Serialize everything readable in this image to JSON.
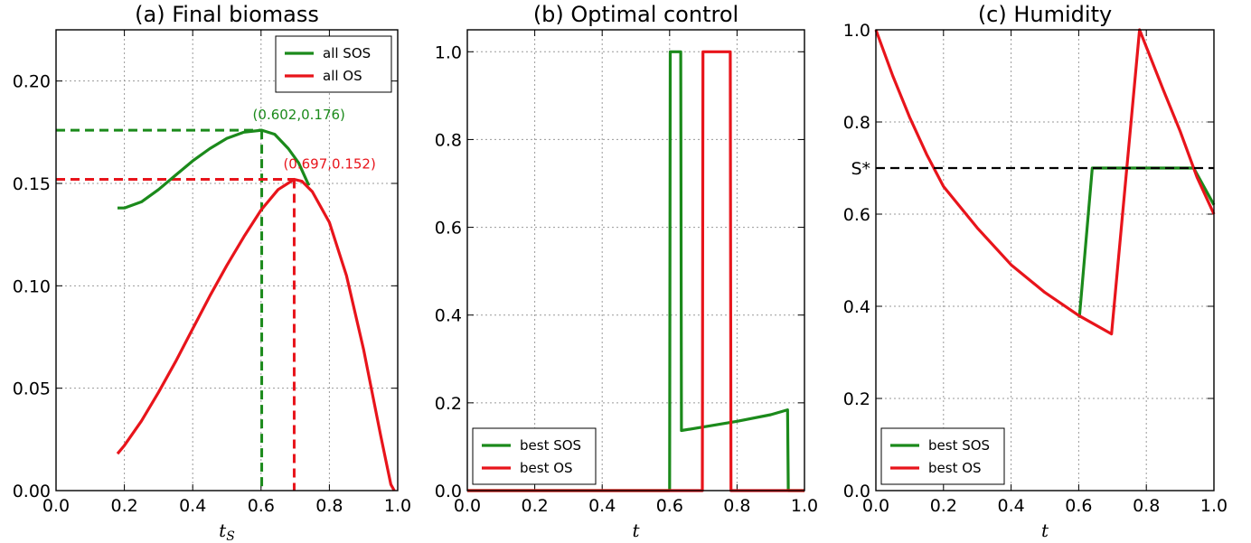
{
  "colors": {
    "green": "#1b8a1b",
    "red": "#e8141b",
    "black": "#000000"
  },
  "chart_data": [
    {
      "type": "line",
      "title": "(a) Final biomass",
      "xlabel": "t_S",
      "ylabel": "",
      "xlim": [
        0.0,
        1.0
      ],
      "ylim": [
        0.0,
        0.225
      ],
      "xticks": [
        "0.0",
        "0.2",
        "0.4",
        "0.6",
        "0.8",
        "1.0"
      ],
      "yticks": [
        "0.00",
        "0.05",
        "0.10",
        "0.15",
        "0.20"
      ],
      "grid": true,
      "legend_position": "top-right",
      "series": [
        {
          "name": "all SOS",
          "color": "green",
          "points": [
            [
              0.18,
              0.138
            ],
            [
              0.2,
              0.138
            ],
            [
              0.25,
              0.141
            ],
            [
              0.3,
              0.147
            ],
            [
              0.35,
              0.154
            ],
            [
              0.4,
              0.161
            ],
            [
              0.45,
              0.167
            ],
            [
              0.5,
              0.172
            ],
            [
              0.55,
              0.175
            ],
            [
              0.602,
              0.176
            ],
            [
              0.64,
              0.174
            ],
            [
              0.68,
              0.167
            ],
            [
              0.71,
              0.16
            ],
            [
              0.74,
              0.149
            ]
          ]
        },
        {
          "name": "all OS",
          "color": "red",
          "points": [
            [
              0.18,
              0.018
            ],
            [
              0.2,
              0.022
            ],
            [
              0.25,
              0.034
            ],
            [
              0.3,
              0.048
            ],
            [
              0.35,
              0.063
            ],
            [
              0.4,
              0.079
            ],
            [
              0.45,
              0.095
            ],
            [
              0.5,
              0.11
            ],
            [
              0.55,
              0.124
            ],
            [
              0.6,
              0.137
            ],
            [
              0.65,
              0.147
            ],
            [
              0.697,
              0.152
            ],
            [
              0.72,
              0.151
            ],
            [
              0.75,
              0.146
            ],
            [
              0.8,
              0.131
            ],
            [
              0.85,
              0.105
            ],
            [
              0.9,
              0.069
            ],
            [
              0.95,
              0.027
            ],
            [
              0.98,
              0.003
            ],
            [
              0.99,
              0.0
            ]
          ]
        }
      ],
      "annotations": [
        {
          "text": "(0.602,0.176)",
          "x": 0.602,
          "y": 0.176,
          "color": "green"
        },
        {
          "text": "(0.697,0.152)",
          "x": 0.697,
          "y": 0.152,
          "color": "red"
        }
      ]
    },
    {
      "type": "line",
      "title": "(b) Optimal control",
      "xlabel": "t",
      "ylabel": "",
      "xlim": [
        0.0,
        1.0
      ],
      "ylim": [
        0.0,
        1.05
      ],
      "xticks": [
        "0.0",
        "0.2",
        "0.4",
        "0.6",
        "0.8",
        "1.0"
      ],
      "yticks": [
        "0.0",
        "0.2",
        "0.4",
        "0.6",
        "0.8",
        "1.0"
      ],
      "grid": true,
      "legend_position": "bottom-left",
      "series": [
        {
          "name": "best SOS",
          "color": "green",
          "points": [
            [
              0.0,
              0.0
            ],
            [
              0.6,
              0.0
            ],
            [
              0.602,
              1.0
            ],
            [
              0.633,
              1.0
            ],
            [
              0.635,
              0.137
            ],
            [
              0.7,
              0.145
            ],
            [
              0.8,
              0.158
            ],
            [
              0.9,
              0.173
            ],
            [
              0.95,
              0.184
            ],
            [
              0.952,
              0.0
            ],
            [
              1.0,
              0.0
            ]
          ]
        },
        {
          "name": "best OS",
          "color": "red",
          "points": [
            [
              0.0,
              0.0
            ],
            [
              0.697,
              0.0
            ],
            [
              0.699,
              1.0
            ],
            [
              0.78,
              1.0
            ],
            [
              0.782,
              0.0
            ],
            [
              1.0,
              0.0
            ]
          ]
        }
      ]
    },
    {
      "type": "line",
      "title": "(c) Humidity",
      "xlabel": "t",
      "ylabel": "",
      "xlim": [
        0.0,
        1.0
      ],
      "ylim": [
        0.0,
        1.0
      ],
      "xticks": [
        "0.0",
        "0.2",
        "0.4",
        "0.6",
        "0.8",
        "1.0"
      ],
      "yticks": [
        "0.0",
        "0.2",
        "0.4",
        "0.6",
        "0.8",
        "1.0"
      ],
      "extra_ytick": {
        "label": "S*",
        "value": 0.7
      },
      "grid": true,
      "legend_position": "bottom-left",
      "series": [
        {
          "name": "best SOS",
          "color": "green",
          "points": [
            [
              0.602,
              0.375
            ],
            [
              0.64,
              0.7
            ],
            [
              0.94,
              0.7
            ],
            [
              1.0,
              0.62
            ]
          ]
        },
        {
          "name": "best OS",
          "color": "red",
          "points": [
            [
              0.0,
              1.0
            ],
            [
              0.05,
              0.9
            ],
            [
              0.1,
              0.81
            ],
            [
              0.15,
              0.73
            ],
            [
              0.2,
              0.66
            ],
            [
              0.3,
              0.57
            ],
            [
              0.4,
              0.49
            ],
            [
              0.5,
              0.43
            ],
            [
              0.6,
              0.38
            ],
            [
              0.697,
              0.34
            ],
            [
              0.78,
              1.0
            ],
            [
              0.85,
              0.87
            ],
            [
              0.9,
              0.78
            ],
            [
              0.95,
              0.68
            ],
            [
              1.0,
              0.6
            ]
          ]
        },
        {
          "name": "",
          "color": "black",
          "dashed": true,
          "points": [
            [
              0.0,
              0.7
            ],
            [
              1.0,
              0.7
            ]
          ]
        }
      ]
    }
  ]
}
